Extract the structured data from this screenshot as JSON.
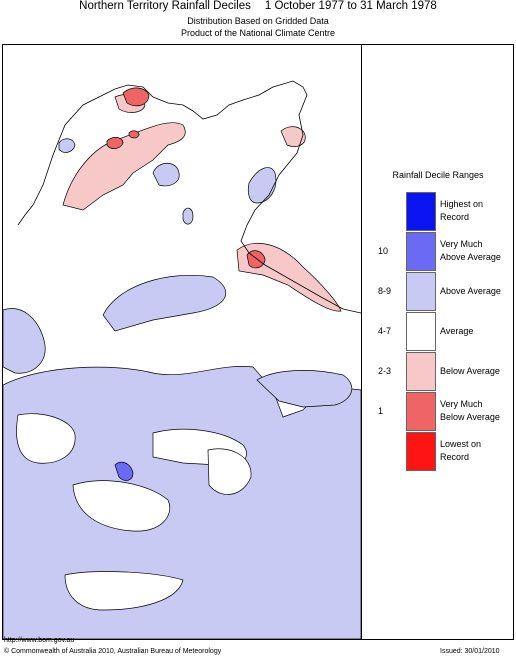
{
  "header": {
    "title": "Northern Territory Rainfall Deciles",
    "period": "1 October 1977 to 31 March 1978",
    "subtitle1": "Distribution Based on Gridded Data",
    "subtitle2": "Product of the National Climate Centre"
  },
  "legend": {
    "title": "Rainfall Decile Ranges",
    "items": [
      {
        "line1": "Highest on",
        "line2": "Record",
        "range": "",
        "color": "#0a14f0"
      },
      {
        "line1": "Very Much",
        "line2": "Above Average",
        "range": "10",
        "color": "#6a6af5"
      },
      {
        "line1": "Above Average",
        "line2": "",
        "range": "8-9",
        "color": "#c8caf3"
      },
      {
        "line1": "Average",
        "line2": "",
        "range": "4-7",
        "color": "#ffffff"
      },
      {
        "line1": "Below Average",
        "line2": "",
        "range": "2-3",
        "color": "#f7c8c8"
      },
      {
        "line1": "Very Much",
        "line2": "Below Average",
        "range": "1",
        "color": "#ef6464"
      },
      {
        "line1": "Lowest on",
        "line2": "Record",
        "range": "",
        "color": "#ff1414"
      }
    ]
  },
  "footer": {
    "url": "http://www.bom.gov.au",
    "copyright": "© Commonwealth of Australia 2010, Australian Bureau of Meteorology",
    "issued": "Issued: 30/01/2010"
  }
}
